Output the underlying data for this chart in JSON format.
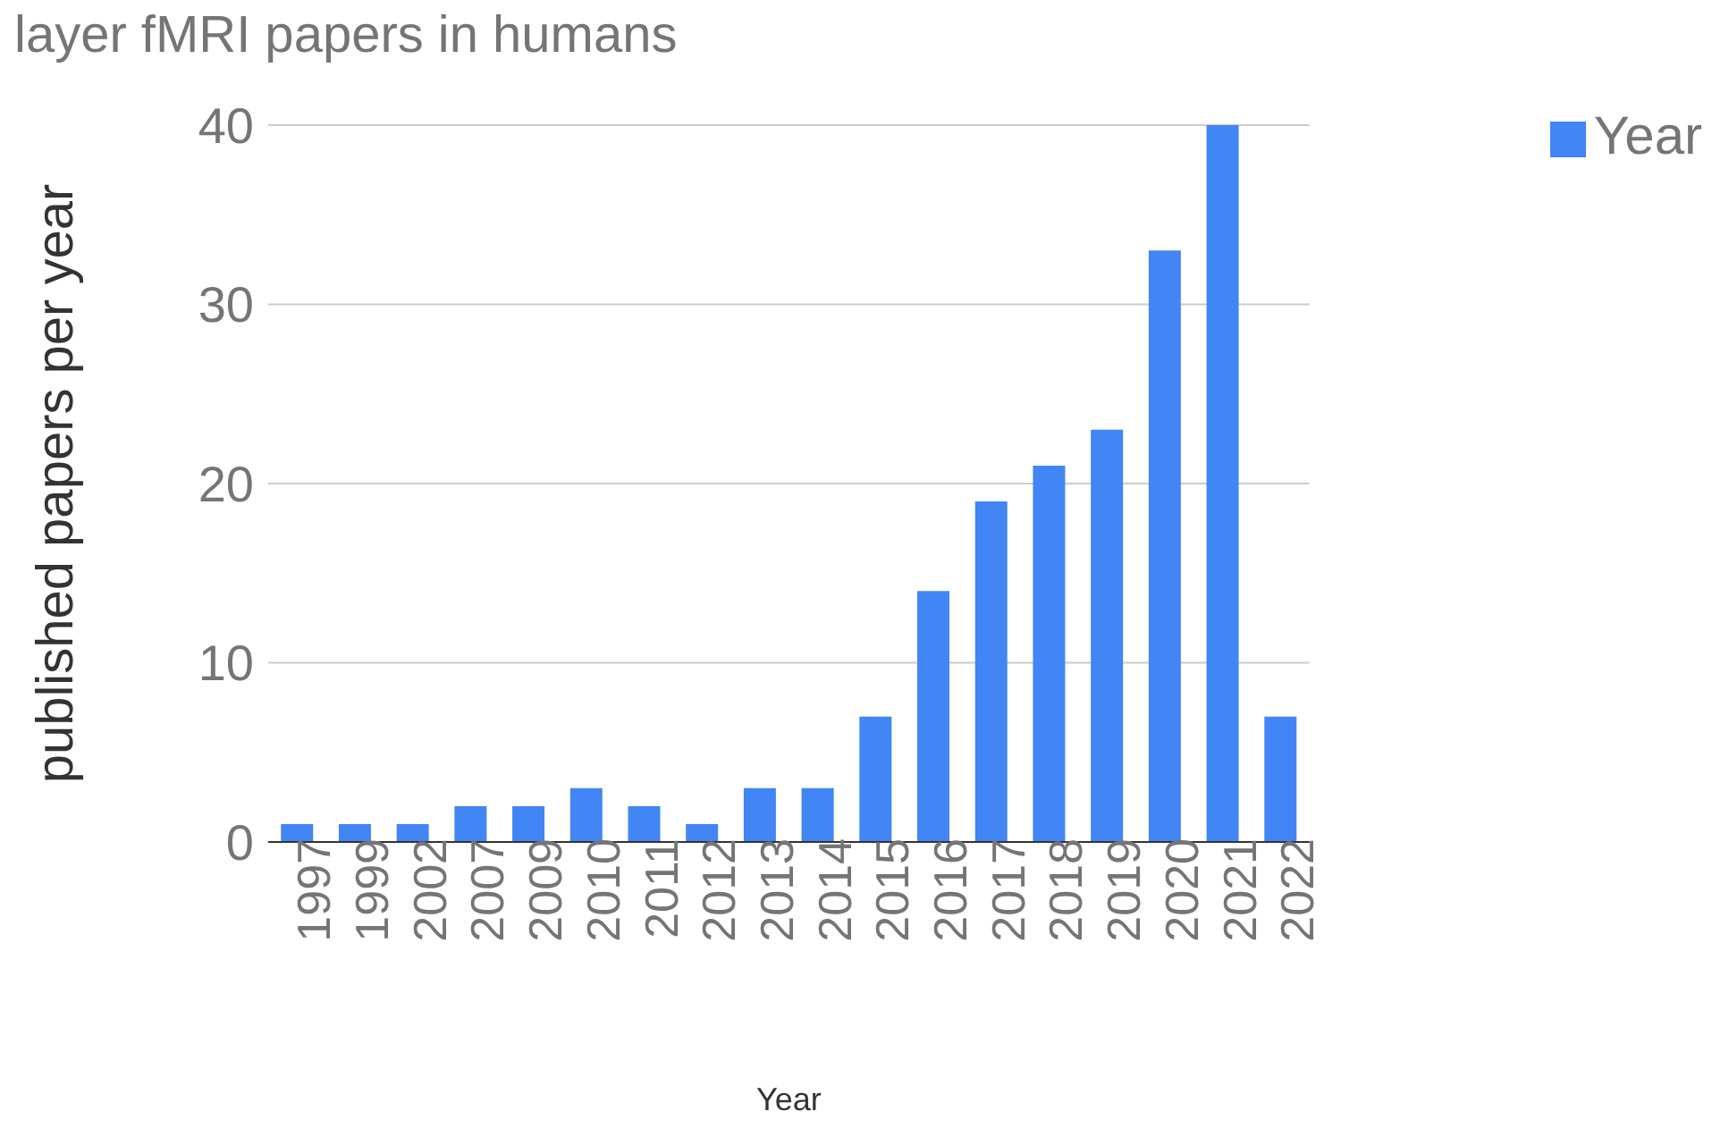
{
  "chart_data": {
    "type": "bar",
    "title": "layer fMRI papers in humans",
    "xlabel": "Year",
    "ylabel": "published papers per year",
    "categories": [
      "1997",
      "1999",
      "2002",
      "2007",
      "2009",
      "2010",
      "2011",
      "2012",
      "2013",
      "2014",
      "2015",
      "2016",
      "2017",
      "2018",
      "2019",
      "2020",
      "2021",
      "2022"
    ],
    "series": [
      {
        "name": "Year",
        "color": "#4285f4",
        "values": [
          1,
          1,
          1,
          2,
          2,
          3,
          2,
          1,
          3,
          3,
          7,
          14,
          19,
          21,
          23,
          33,
          40,
          7
        ]
      }
    ],
    "ylim": [
      0,
      40
    ],
    "yticks": [
      0,
      10,
      20,
      30,
      40
    ],
    "grid": "y",
    "legend": "top right"
  }
}
